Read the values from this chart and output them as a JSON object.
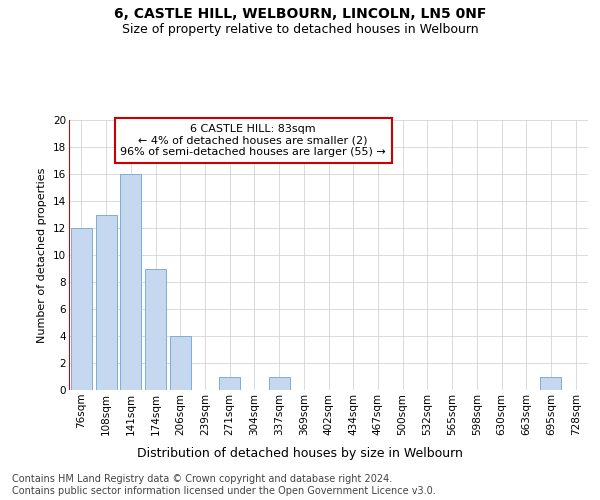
{
  "title": "6, CASTLE HILL, WELBOURN, LINCOLN, LN5 0NF",
  "subtitle": "Size of property relative to detached houses in Welbourn",
  "xlabel": "Distribution of detached houses by size in Welbourn",
  "ylabel": "Number of detached properties",
  "categories": [
    "76sqm",
    "108sqm",
    "141sqm",
    "174sqm",
    "206sqm",
    "239sqm",
    "271sqm",
    "304sqm",
    "337sqm",
    "369sqm",
    "402sqm",
    "434sqm",
    "467sqm",
    "500sqm",
    "532sqm",
    "565sqm",
    "598sqm",
    "630sqm",
    "663sqm",
    "695sqm",
    "728sqm"
  ],
  "values": [
    12,
    13,
    16,
    9,
    4,
    0,
    1,
    0,
    1,
    0,
    0,
    0,
    0,
    0,
    0,
    0,
    0,
    0,
    0,
    1,
    0
  ],
  "bar_color": "#c5d8f0",
  "bar_edge_color": "#7bafd4",
  "annotation_text": "6 CASTLE HILL: 83sqm\n← 4% of detached houses are smaller (2)\n96% of semi-detached houses are larger (55) →",
  "annotation_box_color": "#ffffff",
  "annotation_box_edge_color": "#cc0000",
  "red_line_color": "#cc0000",
  "ylim": [
    0,
    20
  ],
  "yticks": [
    0,
    2,
    4,
    6,
    8,
    10,
    12,
    14,
    16,
    18,
    20
  ],
  "grid_color": "#cccccc",
  "title_fontsize": 10,
  "subtitle_fontsize": 9,
  "xlabel_fontsize": 9,
  "ylabel_fontsize": 8,
  "tick_fontsize": 7.5,
  "annotation_fontsize": 8,
  "footer_fontsize": 7
}
